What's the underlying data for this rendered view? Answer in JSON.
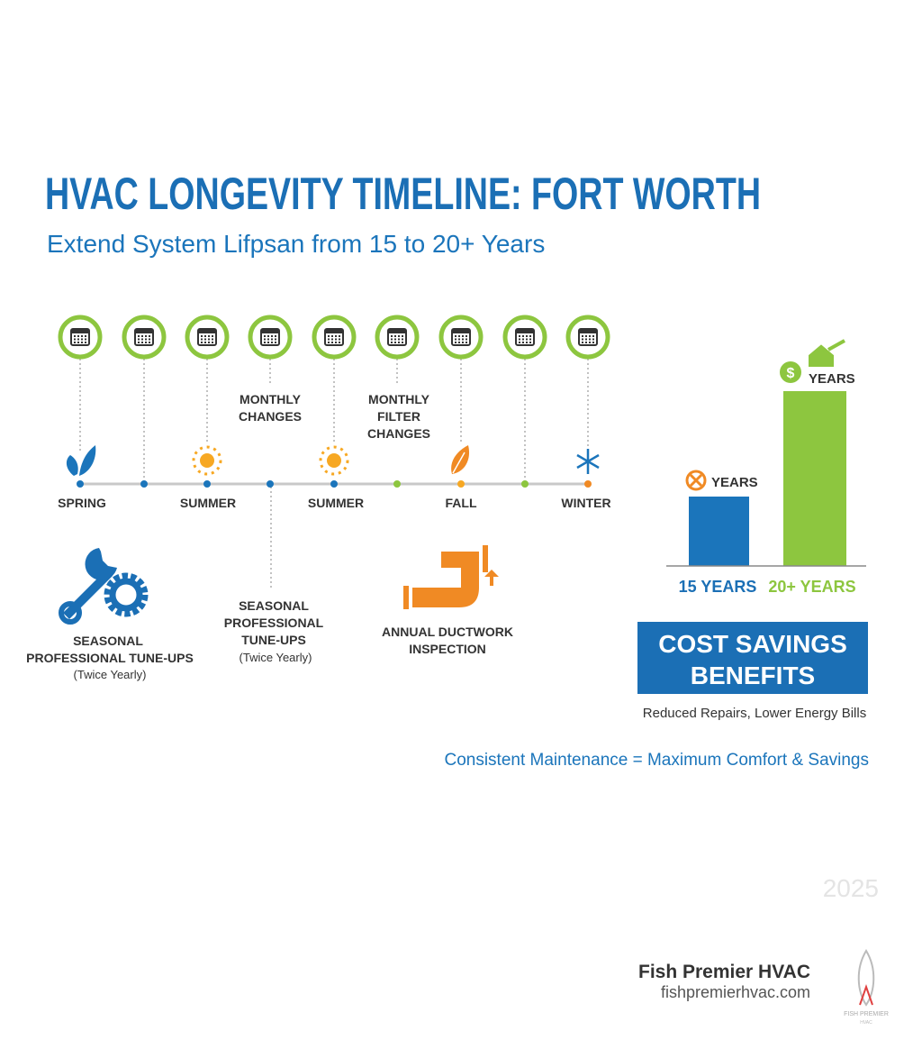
{
  "header": {
    "title": "HVAC LONGEVITY TIMELINE: FORT WORTH",
    "subtitle": "Extend System Lifpsan from 15 to 20+ Years"
  },
  "timeline": {
    "seasons": [
      "SPRING",
      "SUMMER",
      "SUMMER",
      "FALL",
      "WINTER"
    ],
    "notes": [
      {
        "lines": [
          "MONTHLY",
          "CHANGES"
        ]
      },
      {
        "lines": [
          "MONTHLY",
          "FILTER",
          "CHANGES"
        ]
      }
    ]
  },
  "tasks": [
    {
      "lines": [
        "SEASONAL",
        "PROFESSIONAL TUNE-UPS"
      ],
      "sub": "(Twice Yearly)"
    },
    {
      "lines": [
        "SEASONAL",
        "PROFESSIONAL",
        "TUNE-UPS"
      ],
      "sub": "(Twice Yearly)"
    },
    {
      "lines": [
        "ANNUAL DUCTWORK",
        "INSPECTION"
      ]
    }
  ],
  "comparison": {
    "bars": [
      {
        "top_label": "YEARS",
        "label": "15 YEARS"
      },
      {
        "top_label": "YEARS",
        "label": "20+ YEARS"
      }
    ]
  },
  "benefits": {
    "title_lines": [
      "COST SAVINGS",
      "BENEFITS"
    ],
    "subtitle": "Reduced Repairs, Lower Energy Bills"
  },
  "tagline": "Consistent Maintenance = Maximum Comfort & Savings",
  "year": "2025",
  "footer": {
    "company": "Fish Premier HVAC",
    "url": "fishpremierhvac.com",
    "logo_lines": [
      "FISH PREMIER",
      "HVAC"
    ]
  }
}
